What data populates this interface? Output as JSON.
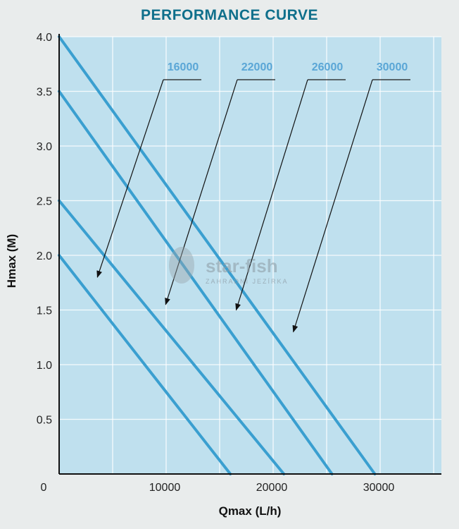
{
  "title": "PERFORMANCE CURVE",
  "watermark": {
    "brand": "star-fish",
    "tagline": "ZAHRADNÍ JEZÍRKA"
  },
  "colors": {
    "plot_bg": "#bfe0ee",
    "line": "#3a9fd0",
    "grid": "#ffffff",
    "legend": "#5aa6d6",
    "title": "#0f6f8b"
  },
  "chart_data": {
    "type": "line",
    "title": "PERFORMANCE CURVE",
    "xlabel": "Qmax (L/h)",
    "ylabel": "Hmax (M)",
    "xlim": [
      0,
      35000
    ],
    "ylim": [
      0,
      4.0
    ],
    "x_ticks": [
      0,
      10000,
      20000,
      30000
    ],
    "x_tick_labels": [
      "0",
      "10000",
      "20000",
      "30000"
    ],
    "y_ticks": [
      0.5,
      1.0,
      1.5,
      2.0,
      2.5,
      3.0,
      3.5,
      4.0
    ],
    "y_tick_labels": [
      "0.5",
      "1.0",
      "1.5",
      "2.0",
      "2.5",
      "3.0",
      "3.5",
      "4.0"
    ],
    "grid": true,
    "legend_position": "top",
    "series": [
      {
        "name": "16000",
        "x": [
          0,
          16000
        ],
        "y": [
          2.0,
          0
        ]
      },
      {
        "name": "22000",
        "x": [
          0,
          21000
        ],
        "y": [
          2.5,
          0
        ]
      },
      {
        "name": "26000",
        "x": [
          0,
          25500
        ],
        "y": [
          3.5,
          0
        ]
      },
      {
        "name": "30000",
        "x": [
          0,
          29500
        ],
        "y": [
          4.0,
          0
        ]
      }
    ]
  }
}
